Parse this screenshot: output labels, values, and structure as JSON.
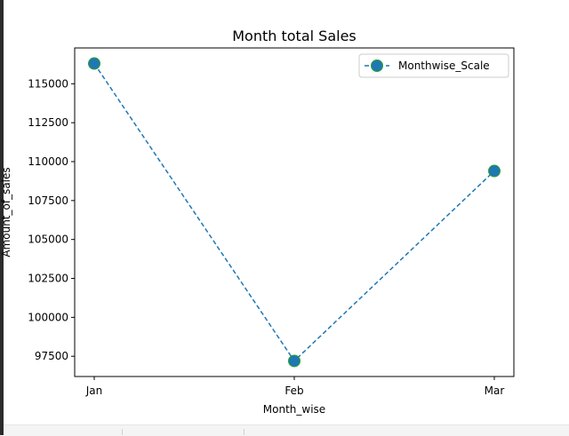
{
  "chart_data": {
    "type": "line",
    "title": "Month total Sales",
    "xlabel": "Month_wise",
    "ylabel": "Amount_of_sales",
    "categories": [
      "Jan",
      "Feb",
      "Mar"
    ],
    "series": [
      {
        "name": "Monthwise_Scale",
        "values": [
          116300,
          97200,
          109400
        ],
        "line_color": "#1f77b4",
        "line_style": "dashed",
        "marker": "circle",
        "marker_face": "#1f77b4",
        "marker_edge": "#2ca02c"
      }
    ],
    "yticks": [
      97500,
      100000,
      102500,
      105000,
      107500,
      110000,
      112500,
      115000
    ],
    "ylim": [
      96200,
      117300
    ],
    "grid": false,
    "legend": "top-right"
  }
}
